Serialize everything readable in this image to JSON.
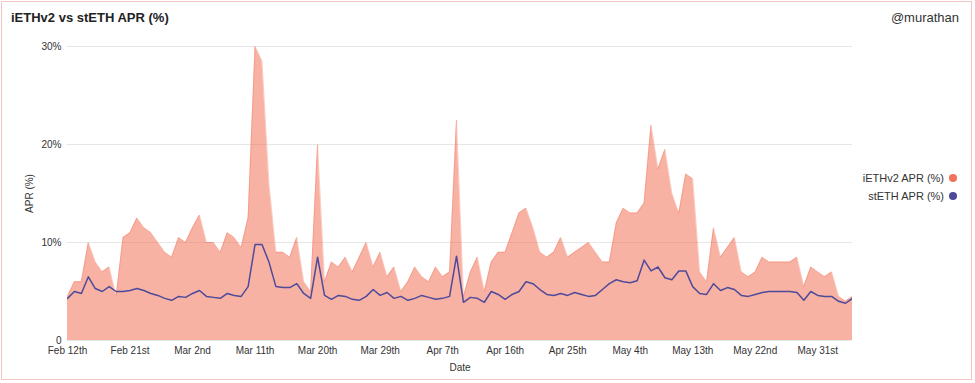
{
  "chart_data": {
    "type": "area",
    "title": "iETHv2 vs stETH APR (%)",
    "author": "@murathan",
    "x_label": "Date",
    "y_label": "APR (%)",
    "categories": [
      "Feb 12th",
      null,
      null,
      null,
      null,
      null,
      null,
      null,
      null,
      "Feb 21st",
      null,
      null,
      null,
      null,
      null,
      null,
      null,
      null,
      "Mar 2nd",
      null,
      null,
      null,
      null,
      null,
      null,
      null,
      null,
      "Mar 11th",
      null,
      null,
      null,
      null,
      null,
      null,
      null,
      null,
      "Mar 20th",
      null,
      null,
      null,
      null,
      null,
      null,
      null,
      null,
      "Mar 29th",
      null,
      null,
      null,
      null,
      null,
      null,
      null,
      null,
      "Apr 7th",
      null,
      null,
      null,
      null,
      null,
      null,
      null,
      null,
      "Apr 16th",
      null,
      null,
      null,
      null,
      null,
      null,
      null,
      null,
      "Apr 25th",
      null,
      null,
      null,
      null,
      null,
      null,
      null,
      null,
      "May 4th",
      null,
      null,
      null,
      null,
      null,
      null,
      null,
      null,
      "May 13th",
      null,
      null,
      null,
      null,
      null,
      null,
      null,
      null,
      "May 22nd",
      null,
      null,
      null,
      null,
      null,
      null,
      null,
      null,
      "May 31st",
      null,
      null,
      null,
      null,
      null
    ],
    "series": [
      {
        "name": "iETHv2 APR (%)",
        "color": "#f2735a",
        "type": "area",
        "values": [
          4.5,
          6,
          6,
          10,
          8,
          7,
          7.5,
          4.5,
          10.5,
          11,
          12.5,
          11.5,
          11,
          10,
          9,
          8.5,
          10.5,
          10,
          11.5,
          12.8,
          10,
          10,
          9,
          11,
          10.5,
          9.5,
          12.5,
          30,
          28.5,
          16,
          9,
          9,
          8.5,
          10.5,
          6,
          5,
          20,
          6,
          8,
          7.5,
          8.5,
          7,
          8.5,
          10,
          7.5,
          9,
          6.5,
          7.5,
          5,
          6,
          7.5,
          6.5,
          6,
          7.5,
          6.5,
          7,
          22.5,
          4.5,
          7,
          8.5,
          5,
          8,
          9,
          9,
          11,
          13,
          13.5,
          11.5,
          9,
          8.5,
          9,
          10.5,
          8.5,
          9,
          9.5,
          10,
          9,
          8,
          8,
          12,
          13.5,
          13,
          13,
          14,
          22,
          17.5,
          19.5,
          15,
          13,
          17,
          16.5,
          7,
          6,
          11.5,
          8.5,
          9.5,
          10.5,
          7,
          6.5,
          7,
          8.5,
          8,
          8,
          8,
          8,
          8.5,
          5.5,
          7.5,
          7,
          6.5,
          7,
          4.5,
          4,
          4.5
        ]
      },
      {
        "name": "stETH APR (%)",
        "color": "#4e4a9a",
        "type": "line",
        "values": [
          4.3,
          5,
          4.8,
          6.5,
          5.3,
          5,
          5.5,
          5,
          5,
          5.1,
          5.3,
          5.1,
          4.8,
          4.6,
          4.3,
          4.1,
          4.5,
          4.4,
          4.8,
          5.1,
          4.5,
          4.4,
          4.3,
          4.8,
          4.6,
          4.5,
          5.5,
          9.8,
          9.8,
          8,
          5.5,
          5.4,
          5.4,
          5.8,
          4.8,
          4.3,
          8.5,
          4.6,
          4.2,
          4.6,
          4.5,
          4.2,
          4.1,
          4.5,
          5.2,
          4.6,
          4.9,
          4.3,
          4.5,
          4.1,
          4.3,
          4.6,
          4.4,
          4.2,
          4.3,
          4.5,
          8.6,
          3.9,
          4.4,
          4.3,
          3.9,
          5,
          4.7,
          4.2,
          4.7,
          5,
          6,
          5.8,
          5.2,
          4.7,
          4.6,
          4.8,
          4.6,
          4.9,
          4.7,
          4.5,
          4.6,
          5.2,
          5.8,
          6.2,
          6,
          5.9,
          6.1,
          8.2,
          7.1,
          7.5,
          6.4,
          6.2,
          7.1,
          7.1,
          5.5,
          4.8,
          4.7,
          5.8,
          5.1,
          5.4,
          5.2,
          4.6,
          4.5,
          4.7,
          4.9,
          5,
          5,
          5,
          5,
          4.9,
          4.1,
          5,
          4.6,
          4.5,
          4.5,
          4,
          3.8,
          4.3
        ]
      }
    ],
    "ylim": [
      0,
      30
    ],
    "yticks": [
      0,
      {
        "value": 10,
        "label": "10%"
      },
      {
        "value": 20,
        "label": "20%"
      },
      {
        "value": 30,
        "label": "30%"
      }
    ],
    "grid": true,
    "legend": "right"
  }
}
